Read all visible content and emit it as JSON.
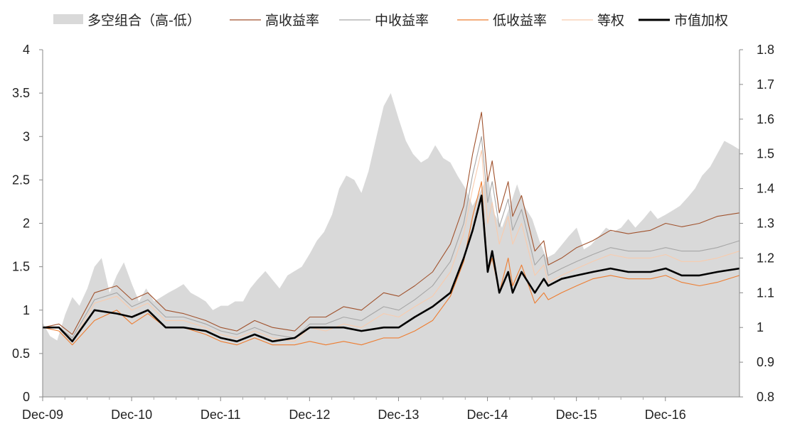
{
  "chart_data": {
    "type": "line",
    "legend": [
      {
        "key": "spread",
        "label": "多空组合（高-低）",
        "kind": "area",
        "color": "#d9d9d9"
      },
      {
        "key": "high",
        "label": "高收益率",
        "kind": "line",
        "color": "#a0522d"
      },
      {
        "key": "mid",
        "label": "中收益率",
        "kind": "line",
        "color": "#a6a6a6"
      },
      {
        "key": "low",
        "label": "低收益率",
        "kind": "line",
        "color": "#ed7d31"
      },
      {
        "key": "equal",
        "label": "等权",
        "kind": "line",
        "color": "#f8cbad"
      },
      {
        "key": "cap",
        "label": "市值加权",
        "kind": "line",
        "color": "#000000"
      }
    ],
    "legend_position": "top",
    "x_ticks": [
      "Dec-09",
      "Dec-10",
      "Dec-11",
      "Dec-12",
      "Dec-13",
      "Dec-14",
      "Dec-15",
      "Dec-16"
    ],
    "y_left_ticks": [
      "0",
      "0.5",
      "1",
      "1.5",
      "2",
      "2.5",
      "3",
      "3.5",
      "4"
    ],
    "y_left_range": [
      0,
      4
    ],
    "y_right_ticks": [
      "0.8",
      "0.9",
      "1",
      "1.1",
      "1.2",
      "1.3",
      "1.4",
      "1.5",
      "1.6",
      "1.7",
      "1.8"
    ],
    "y_right_range": [
      0.8,
      1.8
    ],
    "x_range": [
      2009.917,
      2017.75
    ],
    "x_unit": "year (decimal)",
    "grid": false,
    "series": [
      {
        "key": "spread",
        "axis": "left",
        "x": [
          2009.92,
          2010.0,
          2010.08,
          2010.17,
          2010.25,
          2010.33,
          2010.42,
          2010.5,
          2010.58,
          2010.67,
          2010.75,
          2010.83,
          2010.92,
          2011.0,
          2011.08,
          2011.17,
          2011.25,
          2011.33,
          2011.42,
          2011.5,
          2011.58,
          2011.67,
          2011.75,
          2011.83,
          2011.92,
          2012.0,
          2012.08,
          2012.17,
          2012.25,
          2012.33,
          2012.42,
          2012.5,
          2012.58,
          2012.67,
          2012.75,
          2012.83,
          2012.92,
          2013.0,
          2013.08,
          2013.17,
          2013.25,
          2013.33,
          2013.42,
          2013.5,
          2013.58,
          2013.67,
          2013.75,
          2013.83,
          2013.92,
          2014.0,
          2014.08,
          2014.17,
          2014.25,
          2014.33,
          2014.42,
          2014.5,
          2014.58,
          2014.67,
          2014.75,
          2014.83,
          2014.92,
          2015.0,
          2015.08,
          2015.17,
          2015.25,
          2015.33,
          2015.42,
          2015.5,
          2015.58,
          2015.67,
          2015.75,
          2015.83,
          2015.92,
          2016.0,
          2016.08,
          2016.17,
          2016.25,
          2016.33,
          2016.42,
          2016.5,
          2016.58,
          2016.67,
          2016.75,
          2016.83,
          2016.92,
          2017.0,
          2017.08,
          2017.17,
          2017.25,
          2017.33,
          2017.42,
          2017.5,
          2017.58,
          2017.67,
          2017.75
        ],
        "values": [
          0.85,
          0.7,
          0.65,
          0.95,
          1.15,
          1.05,
          1.25,
          1.5,
          1.6,
          1.2,
          1.4,
          1.55,
          1.3,
          1.1,
          1.25,
          1.1,
          1.15,
          1.2,
          1.25,
          1.3,
          1.2,
          1.15,
          1.1,
          1.0,
          1.05,
          1.05,
          1.1,
          1.1,
          1.25,
          1.35,
          1.45,
          1.35,
          1.25,
          1.4,
          1.45,
          1.5,
          1.65,
          1.8,
          1.9,
          2.1,
          2.4,
          2.55,
          2.5,
          2.35,
          2.6,
          3.0,
          3.35,
          3.5,
          3.2,
          2.95,
          2.8,
          2.7,
          2.75,
          2.9,
          2.75,
          2.7,
          2.55,
          2.4,
          2.2,
          2.35,
          2.55,
          2.1,
          1.95,
          2.2,
          2.45,
          2.2,
          2.05,
          1.8,
          1.6,
          1.65,
          1.75,
          1.85,
          1.95,
          1.7,
          1.75,
          1.85,
          1.95,
          1.9,
          1.95,
          2.05,
          1.95,
          2.05,
          2.15,
          2.05,
          2.1,
          2.15,
          2.2,
          2.3,
          2.4,
          2.55,
          2.65,
          2.8,
          2.95,
          2.9,
          2.85
        ]
      },
      {
        "key": "high",
        "axis": "right",
        "x": [
          2009.92,
          2010.1,
          2010.25,
          2010.5,
          2010.75,
          2010.92,
          2011.1,
          2011.3,
          2011.5,
          2011.75,
          2011.92,
          2012.1,
          2012.3,
          2012.5,
          2012.75,
          2012.92,
          2013.1,
          2013.3,
          2013.5,
          2013.75,
          2013.92,
          2014.1,
          2014.3,
          2014.5,
          2014.65,
          2014.75,
          2014.85,
          2014.92,
          2014.97,
          2015.05,
          2015.15,
          2015.2,
          2015.3,
          2015.45,
          2015.55,
          2015.6,
          2015.75,
          2015.92,
          2016.1,
          2016.3,
          2016.5,
          2016.75,
          2016.92,
          2017.1,
          2017.3,
          2017.5,
          2017.75
        ],
        "values": [
          1.0,
          1.01,
          0.98,
          1.1,
          1.12,
          1.08,
          1.1,
          1.05,
          1.04,
          1.02,
          1.0,
          0.99,
          1.02,
          1.0,
          0.99,
          1.03,
          1.03,
          1.06,
          1.05,
          1.1,
          1.09,
          1.12,
          1.16,
          1.24,
          1.35,
          1.5,
          1.62,
          1.42,
          1.48,
          1.33,
          1.42,
          1.32,
          1.38,
          1.22,
          1.25,
          1.18,
          1.2,
          1.23,
          1.25,
          1.28,
          1.27,
          1.28,
          1.3,
          1.29,
          1.3,
          1.32,
          1.33
        ]
      },
      {
        "key": "mid",
        "axis": "right",
        "x": [
          2009.92,
          2010.1,
          2010.25,
          2010.5,
          2010.75,
          2010.92,
          2011.1,
          2011.3,
          2011.5,
          2011.75,
          2011.92,
          2012.1,
          2012.3,
          2012.5,
          2012.75,
          2012.92,
          2013.1,
          2013.3,
          2013.5,
          2013.75,
          2013.92,
          2014.1,
          2014.3,
          2014.5,
          2014.65,
          2014.75,
          2014.85,
          2014.92,
          2014.97,
          2015.05,
          2015.15,
          2015.2,
          2015.3,
          2015.45,
          2015.55,
          2015.6,
          2015.75,
          2015.92,
          2016.1,
          2016.3,
          2016.5,
          2016.75,
          2016.92,
          2017.1,
          2017.3,
          2017.5,
          2017.75
        ],
        "values": [
          1.0,
          1.0,
          0.97,
          1.08,
          1.1,
          1.06,
          1.08,
          1.03,
          1.03,
          1.01,
          0.99,
          0.98,
          1.0,
          0.98,
          0.97,
          1.01,
          1.01,
          1.03,
          1.02,
          1.06,
          1.05,
          1.08,
          1.12,
          1.19,
          1.3,
          1.44,
          1.55,
          1.36,
          1.42,
          1.29,
          1.37,
          1.28,
          1.34,
          1.18,
          1.21,
          1.15,
          1.17,
          1.19,
          1.21,
          1.23,
          1.22,
          1.22,
          1.23,
          1.22,
          1.22,
          1.23,
          1.25
        ]
      },
      {
        "key": "low",
        "axis": "right",
        "x": [
          2009.92,
          2010.1,
          2010.25,
          2010.5,
          2010.75,
          2010.92,
          2011.1,
          2011.3,
          2011.5,
          2011.75,
          2011.92,
          2012.1,
          2012.3,
          2012.5,
          2012.75,
          2012.92,
          2013.1,
          2013.3,
          2013.5,
          2013.75,
          2013.92,
          2014.1,
          2014.3,
          2014.5,
          2014.65,
          2014.75,
          2014.85,
          2014.92,
          2014.97,
          2015.05,
          2015.15,
          2015.2,
          2015.3,
          2015.45,
          2015.55,
          2015.6,
          2015.75,
          2015.92,
          2016.1,
          2016.3,
          2016.5,
          2016.75,
          2016.92,
          2017.1,
          2017.3,
          2017.5,
          2017.75
        ],
        "values": [
          1.0,
          0.99,
          0.95,
          1.02,
          1.05,
          1.01,
          1.04,
          1.0,
          1.0,
          0.98,
          0.96,
          0.95,
          0.97,
          0.95,
          0.95,
          0.96,
          0.95,
          0.96,
          0.95,
          0.97,
          0.97,
          0.99,
          1.02,
          1.09,
          1.19,
          1.32,
          1.42,
          1.16,
          1.2,
          1.1,
          1.2,
          1.12,
          1.18,
          1.07,
          1.1,
          1.08,
          1.1,
          1.12,
          1.14,
          1.15,
          1.14,
          1.14,
          1.15,
          1.13,
          1.12,
          1.13,
          1.15
        ]
      },
      {
        "key": "equal",
        "axis": "right",
        "x": [
          2009.92,
          2010.1,
          2010.25,
          2010.5,
          2010.75,
          2010.92,
          2011.1,
          2011.3,
          2011.5,
          2011.75,
          2011.92,
          2012.1,
          2012.3,
          2012.5,
          2012.75,
          2012.92,
          2013.1,
          2013.3,
          2013.5,
          2013.75,
          2013.92,
          2014.1,
          2014.3,
          2014.5,
          2014.65,
          2014.75,
          2014.85,
          2014.92,
          2014.97,
          2015.05,
          2015.15,
          2015.2,
          2015.3,
          2015.45,
          2015.55,
          2015.6,
          2015.75,
          2015.92,
          2016.1,
          2016.3,
          2016.5,
          2016.75,
          2016.92,
          2017.1,
          2017.3,
          2017.5,
          2017.75
        ],
        "values": [
          1.0,
          1.0,
          0.96,
          1.07,
          1.09,
          1.05,
          1.07,
          1.02,
          1.02,
          1.0,
          0.98,
          0.97,
          0.99,
          0.97,
          0.96,
          1.0,
          0.99,
          1.01,
          1.0,
          1.04,
          1.03,
          1.06,
          1.09,
          1.16,
          1.27,
          1.4,
          1.51,
          1.3,
          1.36,
          1.24,
          1.32,
          1.24,
          1.3,
          1.15,
          1.18,
          1.13,
          1.15,
          1.17,
          1.19,
          1.21,
          1.2,
          1.2,
          1.21,
          1.19,
          1.19,
          1.2,
          1.22
        ]
      },
      {
        "key": "cap",
        "axis": "right",
        "x": [
          2009.92,
          2010.1,
          2010.25,
          2010.5,
          2010.75,
          2010.92,
          2011.1,
          2011.3,
          2011.5,
          2011.75,
          2011.92,
          2012.1,
          2012.3,
          2012.5,
          2012.75,
          2012.92,
          2013.1,
          2013.3,
          2013.5,
          2013.75,
          2013.92,
          2014.1,
          2014.3,
          2014.5,
          2014.65,
          2014.75,
          2014.85,
          2014.92,
          2014.97,
          2015.05,
          2015.15,
          2015.2,
          2015.3,
          2015.45,
          2015.55,
          2015.6,
          2015.75,
          2015.92,
          2016.1,
          2016.3,
          2016.5,
          2016.75,
          2016.92,
          2017.1,
          2017.3,
          2017.5,
          2017.75
        ],
        "values": [
          1.0,
          1.0,
          0.96,
          1.05,
          1.04,
          1.03,
          1.05,
          1.0,
          1.0,
          0.99,
          0.97,
          0.96,
          0.98,
          0.96,
          0.97,
          1.0,
          1.0,
          1.0,
          0.99,
          1.0,
          1.0,
          1.03,
          1.06,
          1.1,
          1.2,
          1.28,
          1.38,
          1.16,
          1.22,
          1.1,
          1.16,
          1.1,
          1.16,
          1.1,
          1.14,
          1.12,
          1.14,
          1.15,
          1.16,
          1.17,
          1.16,
          1.16,
          1.17,
          1.15,
          1.15,
          1.16,
          1.17
        ]
      }
    ]
  }
}
